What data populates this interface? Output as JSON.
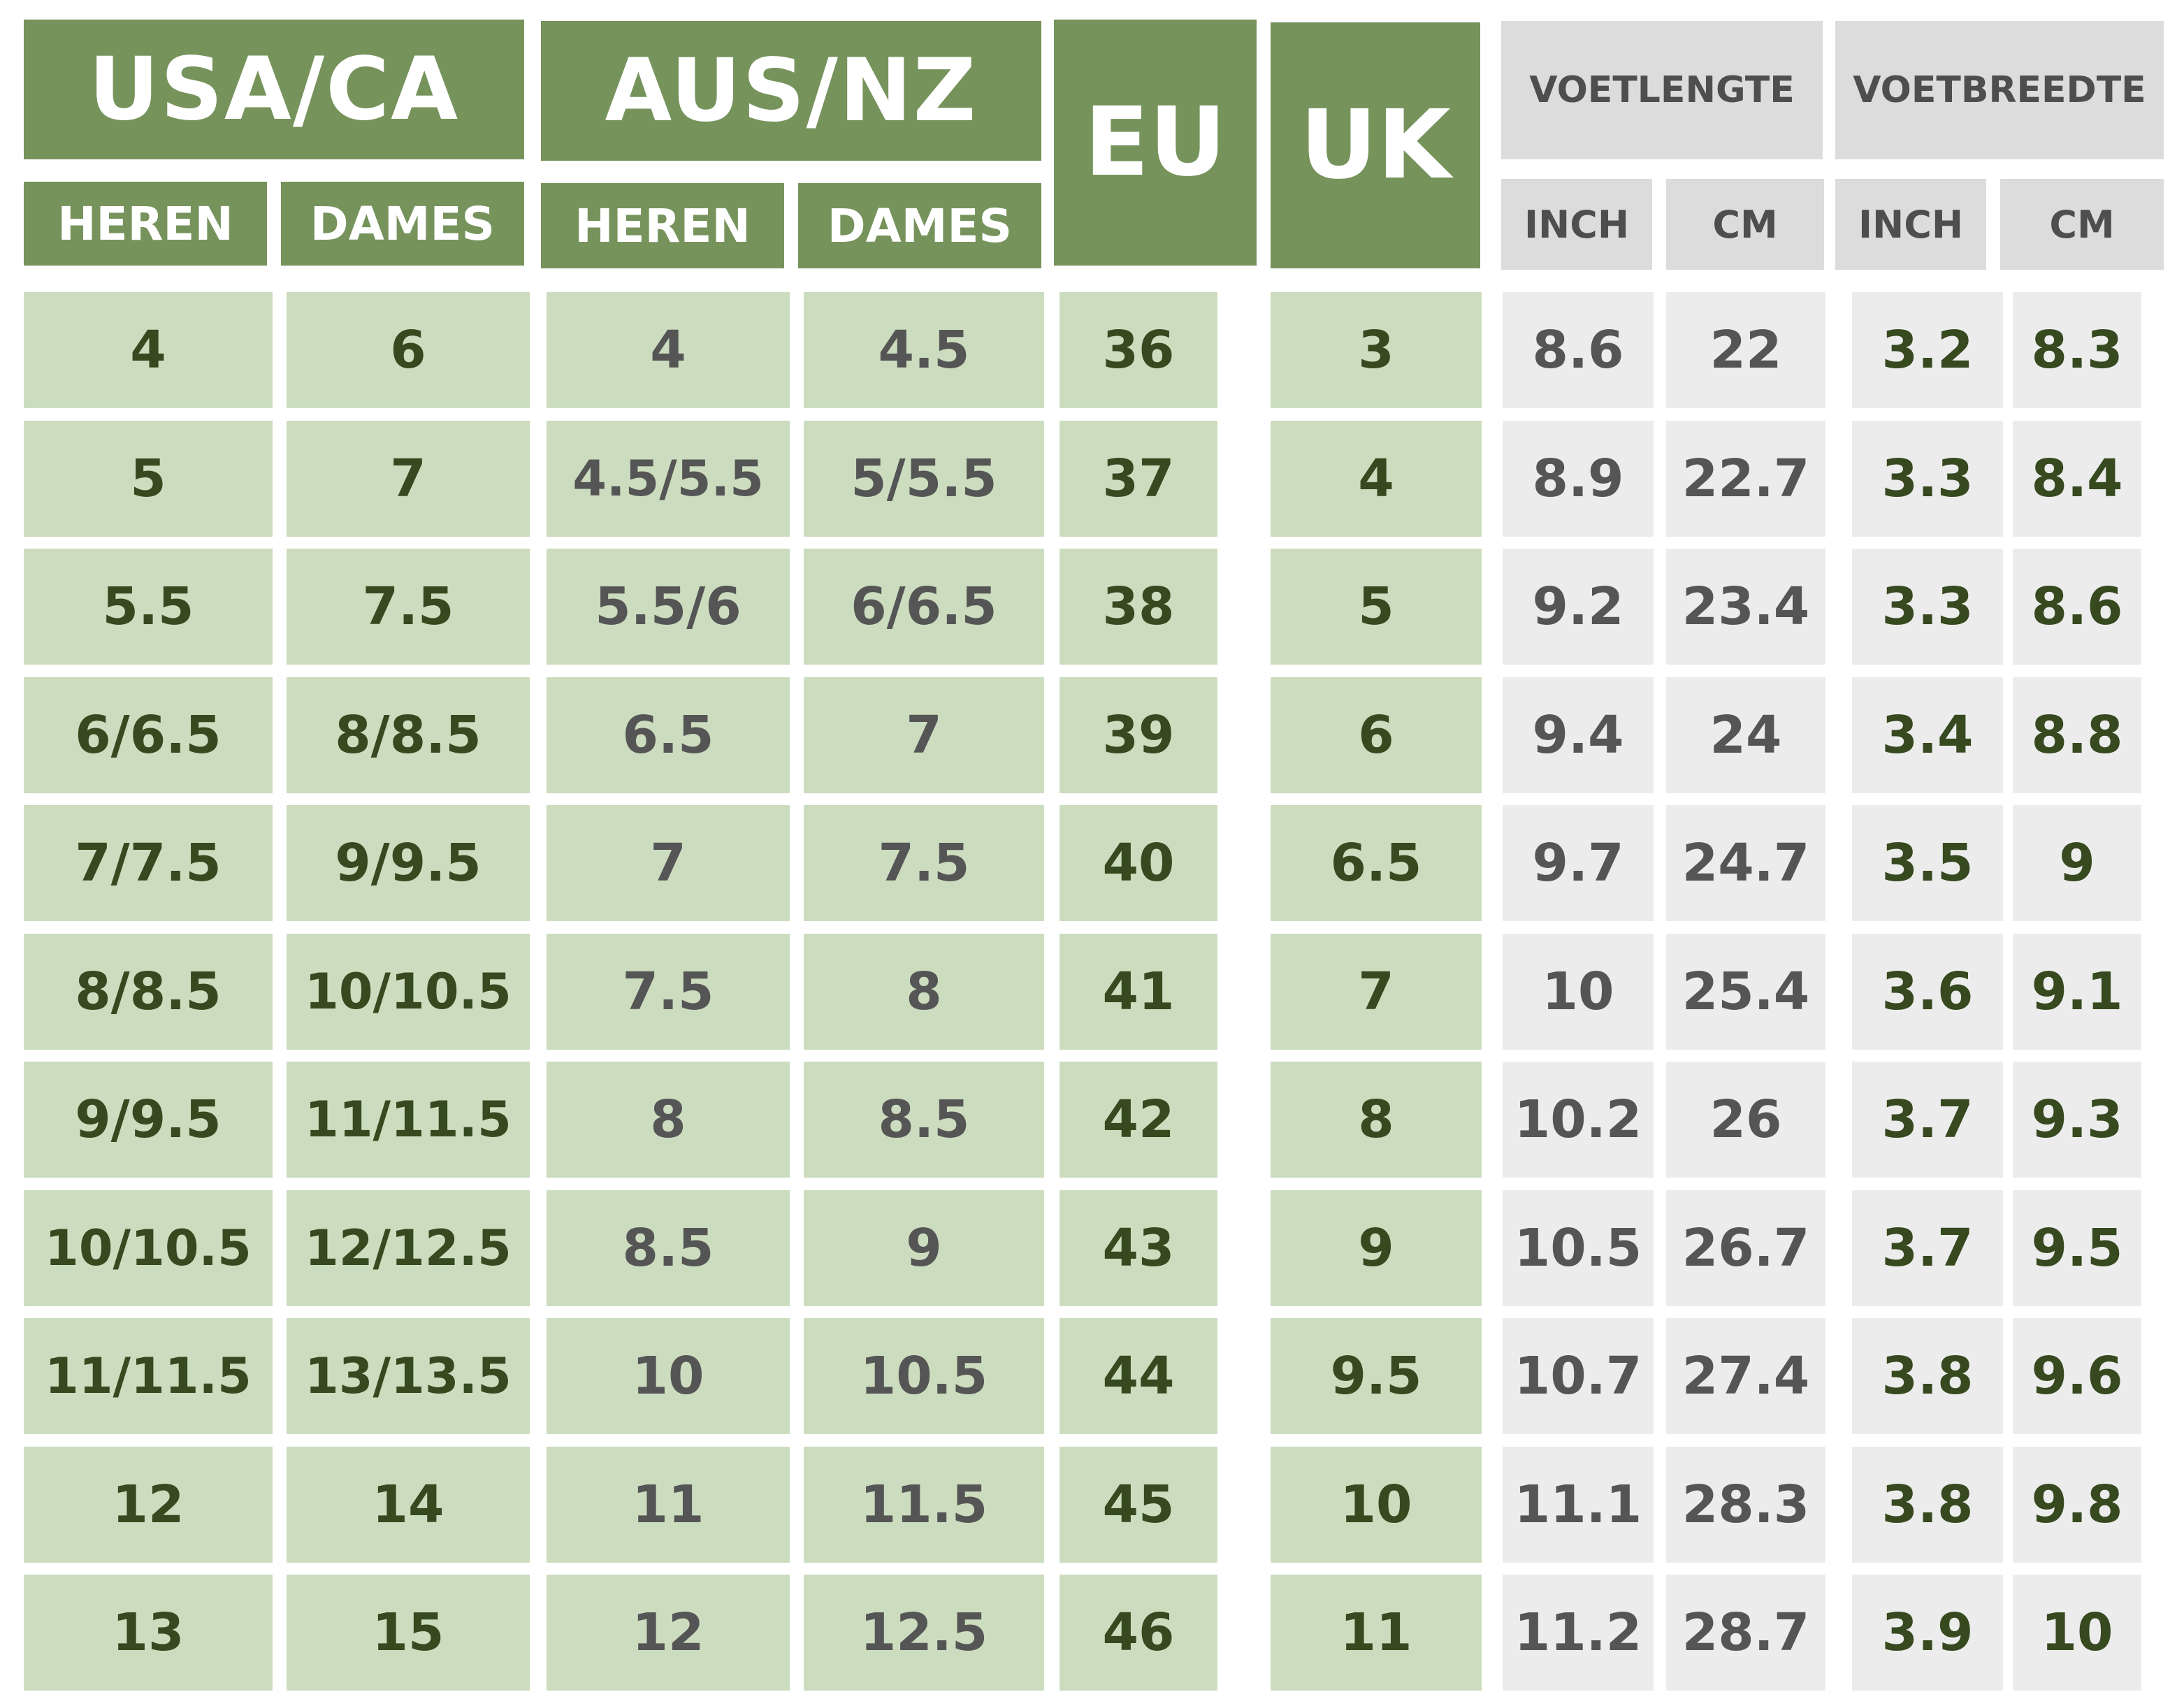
{
  "colors": {
    "header_green": "#76935c",
    "header_grey": "#dcdcdc",
    "cell_green": "#ccddbf",
    "cell_grey": "#ececec",
    "text_dark_green": "#36491f",
    "text_grey": "#555555"
  },
  "header": {
    "usa_ca": "USA/CA",
    "aus_nz": "AUS/NZ",
    "eu": "EU",
    "uk": "UK",
    "voetlengte": "VOETLENGTE",
    "voetbreedte": "VOETBREEDTE",
    "heren": "HEREN",
    "dames": "DAMES",
    "inch": "INCH",
    "cm": "CM"
  },
  "rows": [
    {
      "usa_heren": "4",
      "usa_dames": "6",
      "aus_heren": "4",
      "aus_dames": "4.5",
      "eu": "36",
      "uk": "3",
      "len_inch": "8.6",
      "len_cm": "22",
      "wid_inch": "3.2",
      "wid_cm": "8.3"
    },
    {
      "usa_heren": "5",
      "usa_dames": "7",
      "aus_heren": "4.5/5.5",
      "aus_dames": "5/5.5",
      "eu": "37",
      "uk": "4",
      "len_inch": "8.9",
      "len_cm": "22.7",
      "wid_inch": "3.3",
      "wid_cm": "8.4"
    },
    {
      "usa_heren": "5.5",
      "usa_dames": "7.5",
      "aus_heren": "5.5/6",
      "aus_dames": "6/6.5",
      "eu": "38",
      "uk": "5",
      "len_inch": "9.2",
      "len_cm": "23.4",
      "wid_inch": "3.3",
      "wid_cm": "8.6"
    },
    {
      "usa_heren": "6/6.5",
      "usa_dames": "8/8.5",
      "aus_heren": "6.5",
      "aus_dames": "7",
      "eu": "39",
      "uk": "6",
      "len_inch": "9.4",
      "len_cm": "24",
      "wid_inch": "3.4",
      "wid_cm": "8.8"
    },
    {
      "usa_heren": "7/7.5",
      "usa_dames": "9/9.5",
      "aus_heren": "7",
      "aus_dames": "7.5",
      "eu": "40",
      "uk": "6.5",
      "len_inch": "9.7",
      "len_cm": "24.7",
      "wid_inch": "3.5",
      "wid_cm": "9"
    },
    {
      "usa_heren": "8/8.5",
      "usa_dames": "10/10.5",
      "aus_heren": "7.5",
      "aus_dames": "8",
      "eu": "41",
      "uk": "7",
      "len_inch": "10",
      "len_cm": "25.4",
      "wid_inch": "3.6",
      "wid_cm": "9.1"
    },
    {
      "usa_heren": "9/9.5",
      "usa_dames": "11/11.5",
      "aus_heren": "8",
      "aus_dames": "8.5",
      "eu": "42",
      "uk": "8",
      "len_inch": "10.2",
      "len_cm": "26",
      "wid_inch": "3.7",
      "wid_cm": "9.3"
    },
    {
      "usa_heren": "10/10.5",
      "usa_dames": "12/12.5",
      "aus_heren": "8.5",
      "aus_dames": "9",
      "eu": "43",
      "uk": "9",
      "len_inch": "10.5",
      "len_cm": "26.7",
      "wid_inch": "3.7",
      "wid_cm": "9.5"
    },
    {
      "usa_heren": "11/11.5",
      "usa_dames": "13/13.5",
      "aus_heren": "10",
      "aus_dames": "10.5",
      "eu": "44",
      "uk": "9.5",
      "len_inch": "10.7",
      "len_cm": "27.4",
      "wid_inch": "3.8",
      "wid_cm": "9.6"
    },
    {
      "usa_heren": "12",
      "usa_dames": "14",
      "aus_heren": "11",
      "aus_dames": "11.5",
      "eu": "45",
      "uk": "10",
      "len_inch": "11.1",
      "len_cm": "28.3",
      "wid_inch": "3.8",
      "wid_cm": "9.8"
    },
    {
      "usa_heren": "13",
      "usa_dames": "15",
      "aus_heren": "12",
      "aus_dames": "12.5",
      "eu": "46",
      "uk": "11",
      "len_inch": "11.2",
      "len_cm": "28.7",
      "wid_inch": "3.9",
      "wid_cm": "10"
    }
  ]
}
